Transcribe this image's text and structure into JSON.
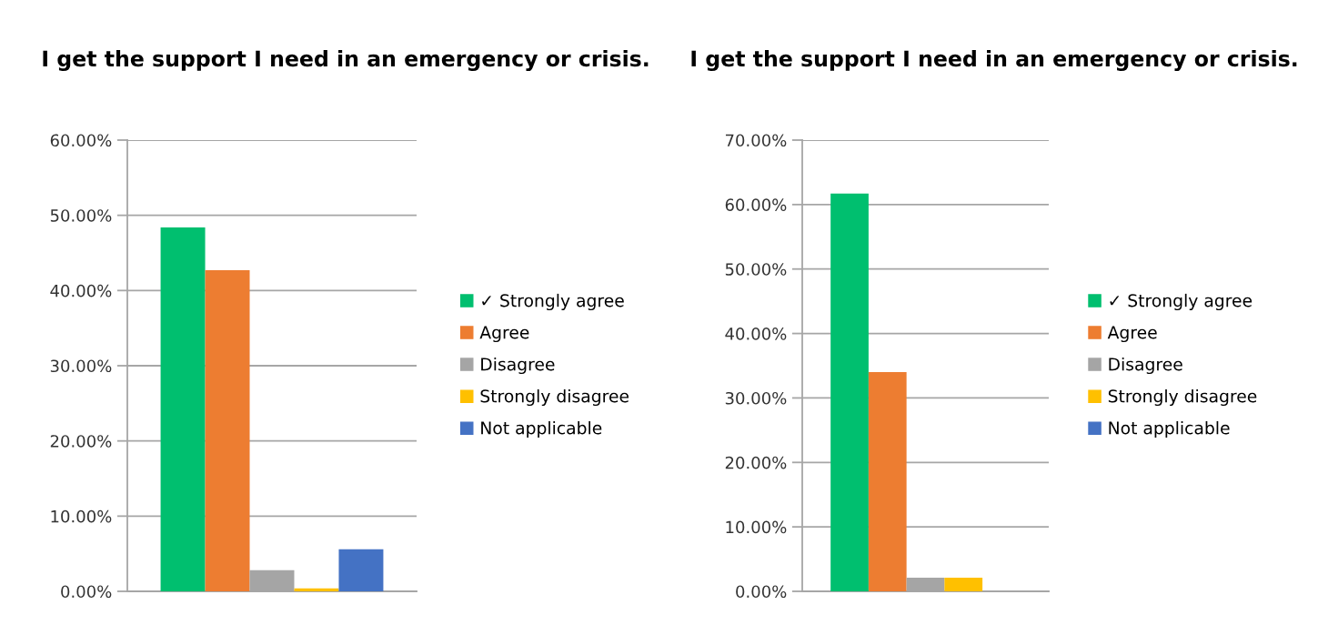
{
  "chart_data": [
    {
      "type": "bar",
      "title": "I get the support I need in an emergency or crisis.",
      "categories": [
        null
      ],
      "series": [
        {
          "name": "✓ Strongly agree",
          "color": "#00bf6f",
          "values": [
            48.4
          ]
        },
        {
          "name": "Agree",
          "color": "#ed7d31",
          "values": [
            42.7
          ]
        },
        {
          "name": "Disagree",
          "color": "#a5a5a5",
          "values": [
            2.8
          ]
        },
        {
          "name": "Strongly disagree",
          "color": "#ffc000",
          "values": [
            0.4
          ]
        },
        {
          "name": "Not applicable",
          "color": "#4472c4",
          "values": [
            5.6
          ]
        }
      ],
      "ylim": [
        0,
        60
      ],
      "yticks": [
        {
          "value": 0,
          "label": "0.00%"
        },
        {
          "value": 10,
          "label": "10.00%"
        },
        {
          "value": 20,
          "label": "20.00%"
        },
        {
          "value": 30,
          "label": "30.00%"
        },
        {
          "value": 40,
          "label": "40.00%"
        },
        {
          "value": 50,
          "label": "50.00%"
        },
        {
          "value": 60,
          "label": "60.00%"
        }
      ],
      "grid": "y",
      "legend": "right"
    },
    {
      "type": "bar",
      "title": "I get the support I need in an emergency or crisis.",
      "categories": [
        null
      ],
      "series": [
        {
          "name": "✓ Strongly agree",
          "color": "#00bf6f",
          "values": [
            61.7
          ]
        },
        {
          "name": "Agree",
          "color": "#ed7d31",
          "values": [
            34.0
          ]
        },
        {
          "name": "Disagree",
          "color": "#a5a5a5",
          "values": [
            2.1
          ]
        },
        {
          "name": "Strongly disagree",
          "color": "#ffc000",
          "values": [
            2.1
          ]
        },
        {
          "name": "Not applicable",
          "color": "#4472c4",
          "values": [
            0
          ]
        }
      ],
      "ylim": [
        0,
        70
      ],
      "yticks": [
        {
          "value": 0,
          "label": "0.00%"
        },
        {
          "value": 10,
          "label": "10.00%"
        },
        {
          "value": 20,
          "label": "20.00%"
        },
        {
          "value": 30,
          "label": "30.00%"
        },
        {
          "value": 40,
          "label": "40.00%"
        },
        {
          "value": 50,
          "label": "50.00%"
        },
        {
          "value": 60,
          "label": "60.00%"
        },
        {
          "value": 70,
          "label": "70.00%"
        }
      ],
      "grid": "y",
      "legend": "right"
    }
  ]
}
